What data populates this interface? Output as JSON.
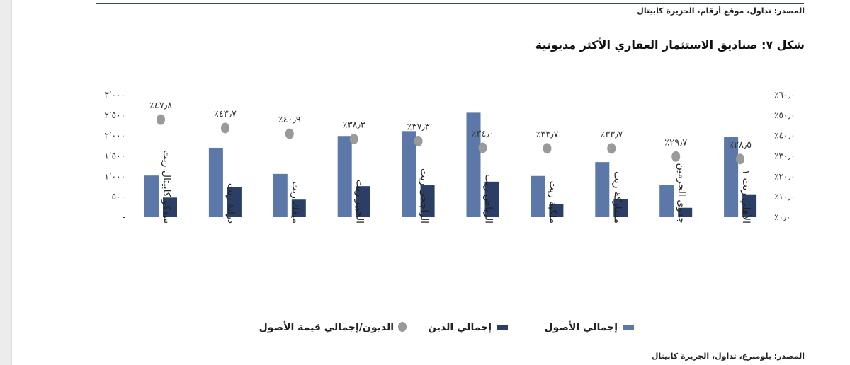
{
  "top_source": "المصدر: تداول، موقع أرقام، الجزيرة كابيتال",
  "figure_title": "شكل ٧: صناديق الاستثمار العقاري الأكثر مديونية",
  "bottom_source": "المصدر: بلومبرغ، تداول، الجزيرة كابيتال",
  "colors": {
    "assets": "#5b78a8",
    "debt": "#2b3f66",
    "ratio": "#9a9a9a"
  },
  "chart_data": {
    "type": "bar",
    "categories": [
      "سدكو كابيتال ريت",
      "دراية ريت",
      "ميفك ريت",
      "الخبير ريت",
      "الراجحي ريت",
      "الرياض ريت",
      "ملكية ريت",
      "مشاركة ريت",
      "جدوى الحرمين",
      "الأهلي ريت ١"
    ],
    "series": [
      {
        "name": "إجمالي الأصول",
        "kind": "bar",
        "axis": "left",
        "values": [
          1020,
          1700,
          1060,
          1990,
          2110,
          2560,
          1010,
          1350,
          780,
          1960
        ]
      },
      {
        "name": "إجمالي الدين",
        "kind": "bar",
        "axis": "left",
        "values": [
          480,
          740,
          430,
          760,
          780,
          870,
          330,
          450,
          230,
          560
        ]
      },
      {
        "name": "الديون/إجمالي قيمة الأصول",
        "kind": "scatter",
        "axis": "right",
        "values": [
          47.8,
          43.7,
          40.9,
          38.3,
          37.3,
          34.0,
          33.7,
          33.7,
          29.7,
          28.5
        ]
      }
    ],
    "ratio_labels": [
      "٪٤٧٫٨",
      "٪٤٣٫٧",
      "٪٤٠٫٩",
      "٪٣٨٫٣",
      "٪٣٧٫٣",
      "٪٣٤٫٠",
      "٪٣٣٫٧",
      "٪٣٣٫٧",
      "٪٢٩٫٧",
      "٪٢٨٫٥"
    ],
    "left_ticks": [
      {
        "value": 0,
        "label": "-"
      },
      {
        "value": 500,
        "label": "٥٠٠"
      },
      {
        "value": 1000,
        "label": "١٬٠٠٠"
      },
      {
        "value": 1500,
        "label": "١٬٥٠٠"
      },
      {
        "value": 2000,
        "label": "٢٬٠٠٠"
      },
      {
        "value": 2500,
        "label": "٢٬٥٠٠"
      },
      {
        "value": 3000,
        "label": "٣٬٠٠٠"
      }
    ],
    "right_ticks": [
      {
        "value": 0,
        "label": "٪٠٫٠"
      },
      {
        "value": 10,
        "label": "٪١٠٫٠"
      },
      {
        "value": 20,
        "label": "٪٢٠٫٠"
      },
      {
        "value": 30,
        "label": "٪٣٠٫٠"
      },
      {
        "value": 40,
        "label": "٪٤٠٫٠"
      },
      {
        "value": 50,
        "label": "٪٥٠٫٠"
      },
      {
        "value": 60,
        "label": "٪٦٠٫٠"
      }
    ],
    "ylim_left": [
      0,
      3000
    ],
    "ylim_right": [
      0,
      60
    ],
    "grid": false,
    "legend_position": "bottom"
  }
}
